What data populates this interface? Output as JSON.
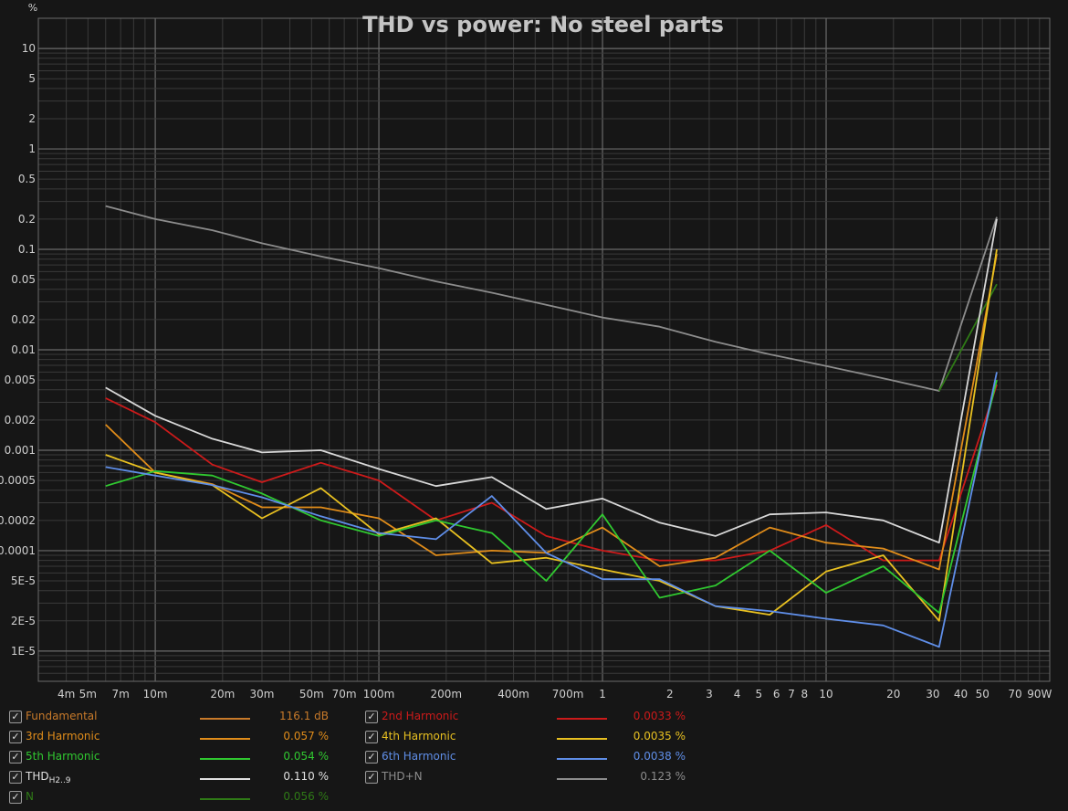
{
  "chart_data": {
    "type": "line",
    "title": "THD vs power: No steel parts",
    "ylabel": "%",
    "xlabel": "",
    "x_scale": "log",
    "y_scale": "log",
    "xlim": [
      0.003,
      100
    ],
    "ylim": [
      5e-06,
      20
    ],
    "grid": true,
    "x_tick_labels": [
      {
        "v": 0.004,
        "t": "4m"
      },
      {
        "v": 0.005,
        "t": "5m"
      },
      {
        "v": 0.007,
        "t": "7m"
      },
      {
        "v": 0.01,
        "t": "10m"
      },
      {
        "v": 0.02,
        "t": "20m"
      },
      {
        "v": 0.03,
        "t": "30m"
      },
      {
        "v": 0.05,
        "t": "50m"
      },
      {
        "v": 0.07,
        "t": "70m"
      },
      {
        "v": 0.1,
        "t": "100m"
      },
      {
        "v": 0.2,
        "t": "200m"
      },
      {
        "v": 0.4,
        "t": "400m"
      },
      {
        "v": 0.7,
        "t": "700m"
      },
      {
        "v": 1,
        "t": "1"
      },
      {
        "v": 2,
        "t": "2"
      },
      {
        "v": 3,
        "t": "3"
      },
      {
        "v": 4,
        "t": "4"
      },
      {
        "v": 5,
        "t": "5"
      },
      {
        "v": 6,
        "t": "6"
      },
      {
        "v": 7,
        "t": "7"
      },
      {
        "v": 8,
        "t": "8"
      },
      {
        "v": 10,
        "t": "10"
      },
      {
        "v": 20,
        "t": "20"
      },
      {
        "v": 30,
        "t": "30"
      },
      {
        "v": 40,
        "t": "40"
      },
      {
        "v": 50,
        "t": "50"
      },
      {
        "v": 70,
        "t": "70"
      },
      {
        "v": 90,
        "t": "90W"
      }
    ],
    "y_tick_labels": [
      {
        "v": 10,
        "t": "10"
      },
      {
        "v": 5,
        "t": "5"
      },
      {
        "v": 2,
        "t": "2"
      },
      {
        "v": 1,
        "t": "1"
      },
      {
        "v": 0.5,
        "t": "0.5"
      },
      {
        "v": 0.2,
        "t": "0.2"
      },
      {
        "v": 0.1,
        "t": "0.1"
      },
      {
        "v": 0.05,
        "t": "0.05"
      },
      {
        "v": 0.02,
        "t": "0.02"
      },
      {
        "v": 0.01,
        "t": "0.01"
      },
      {
        "v": 0.005,
        "t": "0.005"
      },
      {
        "v": 0.002,
        "t": "0.002"
      },
      {
        "v": 0.001,
        "t": "0.001"
      },
      {
        "v": 0.0005,
        "t": "0.0005"
      },
      {
        "v": 0.0002,
        "t": "0.0002"
      },
      {
        "v": 0.0001,
        "t": "0.0001"
      },
      {
        "v": 5e-05,
        "t": "5E-5"
      },
      {
        "v": 2e-05,
        "t": "2E-5"
      },
      {
        "v": 1e-05,
        "t": "1E-5"
      }
    ],
    "x": [
      0.006,
      0.01,
      0.018,
      0.03,
      0.055,
      0.1,
      0.18,
      0.32,
      0.56,
      1,
      1.8,
      3.2,
      5.6,
      10,
      18,
      32,
      58
    ],
    "series": [
      {
        "name": "THD+N",
        "color": "#8c8c8c",
        "values": [
          0.27,
          0.2,
          0.155,
          0.115,
          0.085,
          0.065,
          0.048,
          0.037,
          0.028,
          0.021,
          0.017,
          0.012,
          0.009,
          0.0069,
          0.0052,
          0.0039,
          0.21
        ]
      },
      {
        "name": "N",
        "color": "#2f7a16",
        "values": [
          null,
          null,
          null,
          null,
          null,
          null,
          null,
          null,
          null,
          null,
          null,
          null,
          null,
          null,
          null,
          0.0039,
          0.045
        ]
      },
      {
        "name": "THDH2..9",
        "color": "#d8d8d8",
        "values": [
          0.0042,
          0.0022,
          0.0013,
          0.00095,
          0.001,
          0.00065,
          0.00044,
          0.00054,
          0.00026,
          0.00033,
          0.00019,
          0.00014,
          0.00023,
          0.00024,
          0.0002,
          0.00012,
          0.2
        ]
      },
      {
        "name": "2nd Harmonic",
        "color": "#cc1a1a",
        "values": [
          0.0033,
          0.0019,
          0.00072,
          0.00048,
          0.00075,
          0.0005,
          0.0002,
          0.0003,
          0.00014,
          0.0001,
          8e-05,
          8e-05,
          0.0001,
          0.00018,
          8e-05,
          8e-05,
          0.0045
        ]
      },
      {
        "name": "3rd Harmonic",
        "color": "#e08c1a",
        "values": [
          0.0018,
          0.0006,
          0.00046,
          0.00027,
          0.00027,
          0.00021,
          9e-05,
          0.0001,
          9.5e-05,
          0.00017,
          7e-05,
          8.5e-05,
          0.00017,
          0.00012,
          0.000105,
          6.5e-05,
          0.09
        ]
      },
      {
        "name": "4th Harmonic",
        "color": "#e8c020",
        "values": [
          0.0009,
          0.0006,
          0.00045,
          0.00021,
          0.00042,
          0.000145,
          0.00021,
          7.5e-05,
          8.5e-05,
          6.5e-05,
          5e-05,
          2.8e-05,
          2.3e-05,
          6.2e-05,
          9e-05,
          2e-05,
          0.1
        ]
      },
      {
        "name": "5th Harmonic",
        "color": "#30c830",
        "values": [
          0.00044,
          0.00062,
          0.00056,
          0.00037,
          0.0002,
          0.00014,
          0.0002,
          0.00015,
          5e-05,
          0.00023,
          3.4e-05,
          4.5e-05,
          0.0001,
          3.8e-05,
          7e-05,
          2.4e-05,
          0.005
        ]
      },
      {
        "name": "6th Harmonic",
        "color": "#5f8ee8",
        "values": [
          0.00068,
          0.00056,
          0.00045,
          0.00034,
          0.00022,
          0.00015,
          0.00013,
          0.00035,
          9.5e-05,
          5.2e-05,
          5.2e-05,
          2.8e-05,
          2.5e-05,
          2.1e-05,
          1.8e-05,
          1.1e-05,
          0.006
        ]
      }
    ]
  },
  "legend": [
    {
      "name": "Fundamental",
      "value": "116.1 dB",
      "color": "#c87a2a",
      "checked": "✓"
    },
    {
      "name": "2nd Harmonic",
      "value": "0.0033 %",
      "color": "#cc1a1a",
      "checked": "✓"
    },
    {
      "name": "3rd Harmonic",
      "value": "0.057 %",
      "color": "#e08c1a",
      "checked": "✓"
    },
    {
      "name": "4th Harmonic",
      "value": "0.0035 %",
      "color": "#e8c020",
      "checked": "✓"
    },
    {
      "name": "5th Harmonic",
      "value": "0.054 %",
      "color": "#30c830",
      "checked": "✓"
    },
    {
      "name": "6th Harmonic",
      "value": "0.0038 %",
      "color": "#5f8ee8",
      "checked": "✓"
    },
    {
      "name": "THD",
      "sub": "H2..9",
      "value": "0.110 %",
      "color": "#e0e0e0",
      "checked": "✓"
    },
    {
      "name": "THD+N",
      "value": "0.123 %",
      "color": "#8c8c8c",
      "checked": "✓"
    },
    {
      "name": "N",
      "value": "0.056 %",
      "color": "#2f7a16",
      "checked": "✓"
    }
  ]
}
